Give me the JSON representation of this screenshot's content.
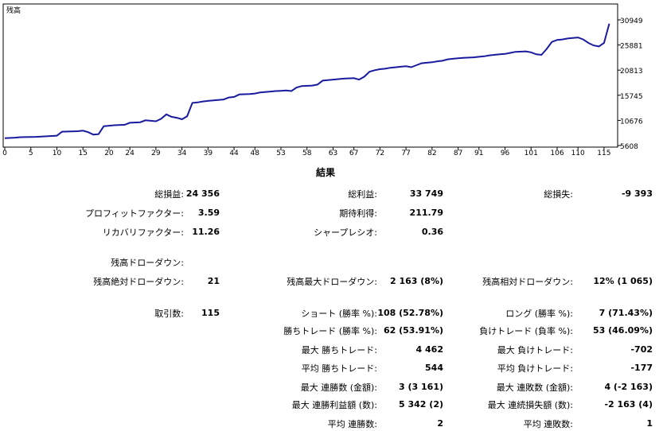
{
  "chart_data": {
    "type": "line",
    "title": "残高",
    "x_ticks": [
      0,
      5,
      10,
      15,
      20,
      24,
      29,
      34,
      39,
      44,
      48,
      53,
      58,
      63,
      67,
      72,
      77,
      82,
      87,
      91,
      96,
      101,
      106,
      110,
      115
    ],
    "y_ticks": [
      30949,
      25881,
      20813,
      15745,
      10676,
      5608
    ],
    "xlim": [
      0,
      117
    ],
    "ylim": [
      5608,
      30949
    ],
    "line_color": "#1a1a9e",
    "series": [
      {
        "x": [
          0,
          2,
          3,
          6,
          7,
          10,
          11,
          14,
          15,
          16,
          17,
          18,
          19,
          20,
          21,
          23,
          24,
          26,
          27,
          28,
          29,
          30,
          31,
          32,
          33,
          34,
          35,
          36,
          37,
          38,
          39,
          40,
          42,
          43,
          44,
          45,
          47,
          48,
          49,
          51,
          52,
          53,
          54,
          55,
          56,
          57,
          59,
          60,
          61,
          62,
          63,
          64,
          65,
          67,
          68,
          69,
          70,
          71,
          72,
          73,
          74,
          76,
          77,
          78,
          79,
          80,
          82,
          83,
          84,
          85,
          86,
          87,
          88,
          90,
          91,
          92,
          93,
          95,
          96,
          97,
          98,
          100,
          101,
          102,
          103,
          104,
          105,
          106,
          107,
          108,
          109,
          110,
          111,
          112,
          113,
          114,
          115,
          116
        ],
        "y": [
          7100,
          7200,
          7300,
          7350,
          7400,
          7600,
          8400,
          8500,
          8600,
          8300,
          7800,
          7900,
          9500,
          9600,
          9700,
          9800,
          10200,
          10300,
          10700,
          10600,
          10500,
          11000,
          11900,
          11400,
          11200,
          10900,
          11500,
          14200,
          14300,
          14500,
          14600,
          14700,
          14900,
          15300,
          15400,
          15900,
          16000,
          16100,
          16300,
          16500,
          16600,
          16650,
          16700,
          16600,
          17300,
          17600,
          17700,
          17900,
          18700,
          18800,
          18900,
          19000,
          19100,
          19200,
          18900,
          19500,
          20500,
          20800,
          21000,
          21100,
          21300,
          21500,
          21600,
          21400,
          21800,
          22200,
          22400,
          22600,
          22700,
          23000,
          23100,
          23200,
          23300,
          23400,
          23500,
          23600,
          23800,
          24000,
          24100,
          24300,
          24500,
          24600,
          24400,
          24000,
          23900,
          25100,
          26500,
          26900,
          27000,
          27200,
          27300,
          27400,
          27000,
          26300,
          25800,
          25600,
          26300,
          30200
        ]
      }
    ]
  },
  "results": {
    "title": "結果",
    "rows": [
      {
        "l1": "総損益:",
        "v1": "24 356",
        "l2": "総利益:",
        "v2": "33 749",
        "l3": "総損失:",
        "v3": "-9 393"
      },
      {
        "l1": "プロフィットファクター:",
        "v1": "3.59",
        "l2": "期待利得:",
        "v2": "211.79",
        "l3": "",
        "v3": ""
      },
      {
        "l1": "リカバリファクター:",
        "v1": "11.26",
        "l2": "シャープレシオ:",
        "v2": "0.36",
        "l3": "",
        "v3": ""
      },
      {
        "l1": "残高ドローダウン:",
        "v1": "",
        "l2": "",
        "v2": "",
        "l3": "",
        "v3": ""
      },
      {
        "l1": "残高絶対ドローダウン:",
        "v1": "21",
        "l2": "残高最大ドローダウン:",
        "v2": "2 163 (8%)",
        "l3": "残高相対ドローダウン:",
        "v3": "12% (1 065)"
      },
      {
        "l1": "取引数:",
        "v1": "115",
        "l2": "ショート (勝率 %):",
        "v2": "108 (52.78%)",
        "l3": "ロング (勝率 %):",
        "v3": "7 (71.43%)"
      },
      {
        "l1": "",
        "v1": "",
        "l2": "勝ちトレード (勝率 %):",
        "v2": "62 (53.91%)",
        "l3": "負けトレード (負率 %):",
        "v3": "53 (46.09%)"
      },
      {
        "l1": "",
        "v1": "",
        "l2": "最大 勝ちトレード:",
        "v2": "4 462",
        "l3": "最大 負けトレード:",
        "v3": "-702"
      },
      {
        "l1": "",
        "v1": "",
        "l2": "平均 勝ちトレード:",
        "v2": "544",
        "l3": "平均 負けトレード:",
        "v3": "-177"
      },
      {
        "l1": "",
        "v1": "",
        "l2": "最大 連勝数 (金額):",
        "v2": "3 (3 161)",
        "l3": "最大 連敗数 (金額):",
        "v3": "4 (-2 163)"
      },
      {
        "l1": "",
        "v1": "",
        "l2": "最大 連勝利益額 (数):",
        "v2": "5 342 (2)",
        "l3": "最大 連続損失額 (数):",
        "v3": "-2 163 (4)"
      },
      {
        "l1": "",
        "v1": "",
        "l2": "平均 連勝数:",
        "v2": "2",
        "l3": "平均 連敗数:",
        "v3": "1"
      }
    ]
  }
}
